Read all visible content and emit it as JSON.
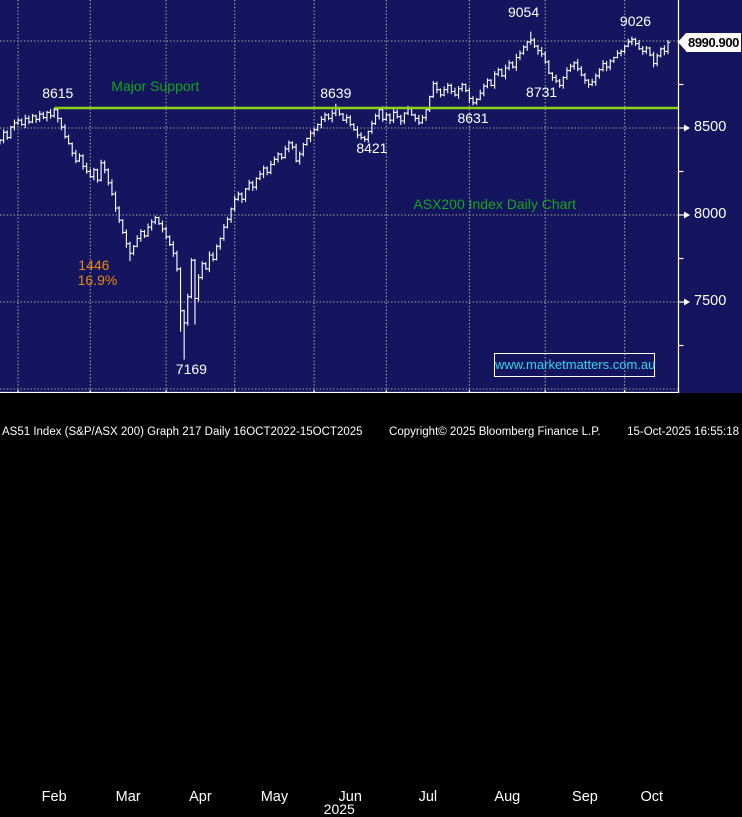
{
  "chart_data": {
    "type": "ohlc-bar",
    "title": "ASX200 Index Daily Chart",
    "last_price": "8990.900",
    "watermark": "www.marketmatters.com.au",
    "x_axis": {
      "year": "2025",
      "months": [
        {
          "label": "Feb",
          "start_bar": 5
        },
        {
          "label": "Mar",
          "start_bar": 25
        },
        {
          "label": "Apr",
          "start_bar": 46
        },
        {
          "label": "May",
          "start_bar": 65
        },
        {
          "label": "Jun",
          "start_bar": 87
        },
        {
          "label": "Jul",
          "start_bar": 107
        },
        {
          "label": "Aug",
          "start_bar": 130
        },
        {
          "label": "Sep",
          "start_bar": 151
        },
        {
          "label": "Oct",
          "start_bar": 173
        }
      ],
      "end_bar": 188
    },
    "y_axis": {
      "labels": [
        8500,
        8000,
        7500
      ],
      "minor_ticks": [
        8750,
        8250,
        7750,
        7250
      ],
      "gridlines": [
        9000,
        8500,
        8000,
        7500,
        7000
      ],
      "ylim": [
        6983,
        9236
      ]
    },
    "support_line": {
      "label": "Major Support",
      "price": 8615,
      "start_bar": 15
    },
    "closes": [
      8430,
      8475,
      8445,
      8505,
      8530,
      8545,
      8520,
      8555,
      8535,
      8570,
      8550,
      8580,
      8560,
      8590,
      8570,
      8605,
      8555,
      8505,
      8450,
      8410,
      8355,
      8310,
      8340,
      8280,
      8250,
      8220,
      8260,
      8200,
      8300,
      8260,
      8185,
      8120,
      8040,
      7970,
      7900,
      7835,
      7780,
      7820,
      7865,
      7905,
      7880,
      7930,
      7960,
      7985,
      7950,
      7920,
      7875,
      7830,
      7780,
      7690,
      7450,
      7380,
      7530,
      7740,
      7520,
      7640,
      7720,
      7690,
      7770,
      7745,
      7820,
      7865,
      7930,
      7975,
      8035,
      8090,
      8120,
      8090,
      8150,
      8185,
      8160,
      8210,
      8235,
      8270,
      8245,
      8290,
      8320,
      8350,
      8330,
      8380,
      8415,
      8390,
      8310,
      8350,
      8405,
      8440,
      8470,
      8490,
      8520,
      8550,
      8575,
      8555,
      8585,
      8610,
      8580,
      8545,
      8560,
      8520,
      8490,
      8460,
      8445,
      8435,
      8480,
      8525,
      8570,
      8605,
      8550,
      8575,
      8545,
      8590,
      8565,
      8540,
      8585,
      8610,
      8575,
      8555,
      8530,
      8560,
      8605,
      8680,
      8755,
      8720,
      8690,
      8720,
      8745,
      8710,
      8690,
      8725,
      8750,
      8715,
      8670,
      8645,
      8665,
      8700,
      8740,
      8775,
      8745,
      8810,
      8835,
      8800,
      8845,
      8875,
      8850,
      8905,
      8930,
      8965,
      8995,
      9005,
      8970,
      8945,
      8925,
      8880,
      8815,
      8790,
      8770,
      8745,
      8790,
      8830,
      8855,
      8875,
      8840,
      8805,
      8775,
      8750,
      8765,
      8800,
      8835,
      8870,
      8850,
      8885,
      8905,
      8930,
      8940,
      8970,
      8995,
      9010,
      8985,
      8955,
      8940,
      8960,
      8920,
      8870,
      8915,
      8955,
      8940,
      8990.9
    ],
    "extremes": {
      "15": {
        "high": 8615
      },
      "36": {
        "low": 7735
      },
      "50": {
        "low": 7330
      },
      "51": {
        "low": 7169
      },
      "54": {
        "low": 7370
      },
      "93": {
        "high": 8639
      },
      "101": {
        "low": 8421
      },
      "120": {
        "high": 8770
      },
      "131": {
        "low": 8631
      },
      "147": {
        "high": 9054
      },
      "155": {
        "low": 8731
      },
      "163": {
        "low": 8731
      },
      "175": {
        "high": 9026
      },
      "181": {
        "low": 8848
      }
    },
    "annotations": [
      {
        "text": "8615",
        "bar": 16,
        "price": 8700,
        "color": "white"
      },
      {
        "text": "Major Support",
        "bar": 43,
        "price": 8740,
        "color": "green"
      },
      {
        "text": "8639",
        "bar": 93,
        "price": 8700,
        "color": "white"
      },
      {
        "text": "8421",
        "bar": 103,
        "price": 8385,
        "color": "white"
      },
      {
        "text": "9054",
        "bar": 145,
        "price": 9165,
        "color": "white"
      },
      {
        "text": "9026",
        "bar": 176,
        "price": 9115,
        "color": "white"
      },
      {
        "text": "8731",
        "bar": 150,
        "price": 8705,
        "color": "white"
      },
      {
        "text": "8631",
        "bar": 131,
        "price": 8555,
        "color": "white"
      },
      {
        "text": "7169",
        "bar": 53,
        "price": 7115,
        "color": "white"
      },
      {
        "text": "1446",
        "bar": 26,
        "price": 7715,
        "color": "orange"
      },
      {
        "text": "16.9%",
        "bar": 27,
        "price": 7625,
        "color": "orange"
      },
      {
        "text": "ASX200 Index Daily Chart",
        "bar": 137,
        "price": 8065,
        "color": "green"
      }
    ]
  },
  "status_bar": {
    "left": "AS51 Index (S&P/ASX 200) Graph 217 Daily 16OCT2022-15OCT2025",
    "center": "Copyright© 2025 Bloomberg Finance L.P.",
    "right": "15-Oct-2025 16:55:18"
  },
  "colors": {
    "background": "#15155f",
    "grid": "#a9a89b",
    "bars": "#ffffff",
    "support_line": "#8cd317",
    "green_text": "#16a516",
    "orange_text": "#e8860d",
    "link_text": "#30d5e8",
    "axis": "#ffffff"
  }
}
